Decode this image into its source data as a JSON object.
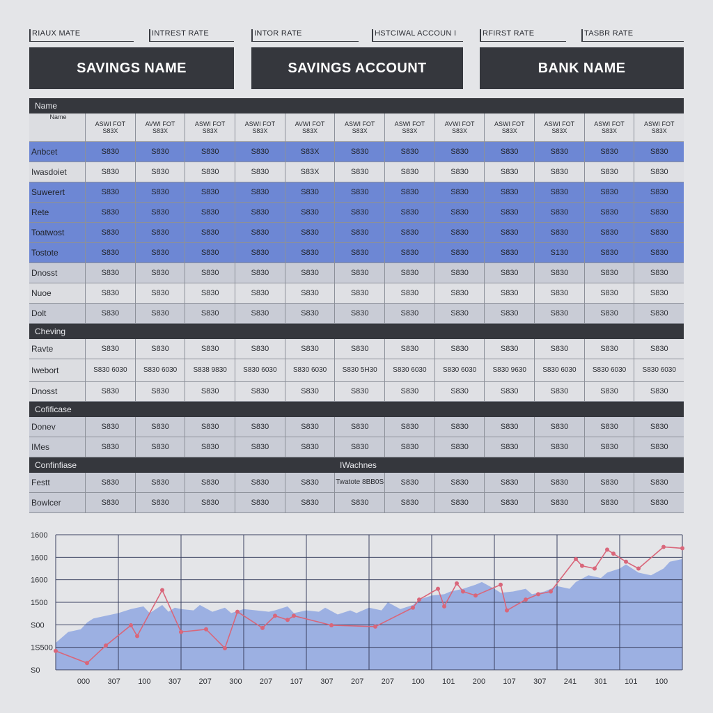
{
  "top_labels": [
    "RIAUX MATE",
    "INTREST RATE",
    "INTOR RATE",
    "HSTCIWAL ACCOUN I",
    "RFIRST RATE",
    "TASBR RATE"
  ],
  "banners": [
    "SAVINGS NAME",
    "SAVINGS ACCOUNT",
    "BANK NAME"
  ],
  "table": {
    "section1_title": "Name",
    "header_name": "Name",
    "column_headers": [
      {
        "l1": "ASWI FOT",
        "l2": "S83X"
      },
      {
        "l1": "AVWI FOT",
        "l2": "S83X"
      },
      {
        "l1": "ASWI FOT",
        "l2": "S83X"
      },
      {
        "l1": "ASWI FOT",
        "l2": "S83X"
      },
      {
        "l1": "AVWI FOT",
        "l2": "S83X"
      },
      {
        "l1": "ASWI FOT",
        "l2": "S83X"
      },
      {
        "l1": "ASWI FOT",
        "l2": "S83X"
      },
      {
        "l1": "AVWI FOT",
        "l2": "S83X"
      },
      {
        "l1": "ASWI FOT",
        "l2": "S83X"
      },
      {
        "l1": "ASWI FOT",
        "l2": "S83X"
      },
      {
        "l1": "ASWI FOT",
        "l2": "S83X"
      },
      {
        "l1": "ASWI FOT",
        "l2": "S83X"
      }
    ],
    "section1_rows": [
      {
        "name": "Anbcet",
        "style": "blue",
        "cells": [
          "S830",
          "S830",
          "S830",
          "S830",
          "S83X",
          "S830",
          "S830",
          "S830",
          "S830",
          "S830",
          "S830",
          "S830"
        ]
      },
      {
        "name": "Iwasdoiet",
        "style": "plain",
        "cells": [
          "S830",
          "S830",
          "S830",
          "S830",
          "S83X",
          "S830",
          "S830",
          "S830",
          "S830",
          "S830",
          "S830",
          "S830"
        ]
      },
      {
        "name": "Suwerert",
        "style": "blue",
        "cells": [
          "S830",
          "S830",
          "S830",
          "S830",
          "S830",
          "S830",
          "S830",
          "S830",
          "S830",
          "S830",
          "S830",
          "S830"
        ]
      },
      {
        "name": "Rete",
        "style": "blue",
        "cells": [
          "S830",
          "S830",
          "S830",
          "S830",
          "S830",
          "S830",
          "S830",
          "S830",
          "S830",
          "S830",
          "S830",
          "S830"
        ]
      },
      {
        "name": "Toatwost",
        "style": "blue",
        "cells": [
          "S830",
          "S830",
          "S830",
          "S830",
          "S830",
          "S830",
          "S830",
          "S830",
          "S830",
          "S830",
          "S830",
          "S830"
        ]
      },
      {
        "name": "Tostote",
        "style": "blue",
        "cells": [
          "S830",
          "S830",
          "S830",
          "S830",
          "S830",
          "S830",
          "S830",
          "S830",
          "S830",
          "S130",
          "S830",
          "S830"
        ]
      },
      {
        "name": "Dnosst",
        "style": "alt",
        "cells": [
          "S830",
          "S830",
          "S830",
          "S830",
          "S830",
          "S830",
          "S830",
          "S830",
          "S830",
          "S830",
          "S830",
          "S830"
        ]
      },
      {
        "name": "Nuoe",
        "style": "plain",
        "cells": [
          "S830",
          "S830",
          "S830",
          "S830",
          "S830",
          "S830",
          "S830",
          "S830",
          "S830",
          "S830",
          "S830",
          "S830"
        ]
      },
      {
        "name": "Dolt",
        "style": "alt",
        "cells": [
          "S830",
          "S830",
          "S830",
          "S830",
          "S830",
          "S830",
          "S830",
          "S830",
          "S830",
          "S830",
          "S830",
          "S830"
        ]
      }
    ],
    "section2_title": "Cheving",
    "section2_rows": [
      {
        "name": "Ravte",
        "style": "plain",
        "stack": false,
        "cells": [
          "S830",
          "S830",
          "S830",
          "S830",
          "S830",
          "S830",
          "S830",
          "S830",
          "S830",
          "S830",
          "S830",
          "S830"
        ]
      },
      {
        "name": "Iwebort",
        "style": "plain",
        "stack": true,
        "cells": [
          "S830 6030",
          "S830 6030",
          "S838 9830",
          "S830 6030",
          "S830 6030",
          "S830 5H30",
          "S830 6030",
          "S830 6030",
          "S830 9630",
          "S830 6030",
          "S830 6030",
          "S830 6030"
        ]
      },
      {
        "name": "Dnosst",
        "style": "plain",
        "stack": false,
        "cells": [
          "S830",
          "S830",
          "S830",
          "S830",
          "S830",
          "S830",
          "S830",
          "S830",
          "S830",
          "S830",
          "S830",
          "S830"
        ]
      }
    ],
    "section3_title": "Cofificase",
    "section3_rows": [
      {
        "name": "Donev",
        "style": "alt",
        "cells": [
          "S830",
          "S830",
          "S830",
          "S830",
          "S830",
          "S830",
          "S830",
          "S830",
          "S830",
          "S830",
          "S830",
          "S830"
        ]
      },
      {
        "name": "IMes",
        "style": "alt",
        "cells": [
          "S830",
          "S830",
          "S830",
          "S830",
          "S830",
          "S830",
          "S830",
          "S830",
          "S830",
          "S830",
          "S830",
          "S830"
        ]
      }
    ],
    "section4_title": "Confinfiase",
    "section4_mid": "IWachnes",
    "section4_rows": [
      {
        "name": "Festt",
        "style": "alt",
        "cells": [
          "S830",
          "S830",
          "S830",
          "S830",
          "S830",
          "Twatote 8BB0S",
          "S830",
          "S830",
          "S830",
          "S830",
          "S830",
          "S830"
        ]
      },
      {
        "name": "Bowlcer",
        "style": "alt",
        "cells": [
          "S830",
          "S830",
          "S830",
          "S830",
          "S830",
          "S830",
          "S830",
          "S830",
          "S830",
          "S830",
          "S830",
          "S830"
        ]
      }
    ]
  },
  "chart_data": {
    "type": "line",
    "y_tick_labels": [
      "1600",
      "1600",
      "1600",
      "1500",
      "S00",
      "1S500",
      "S0"
    ],
    "x_tick_labels": [
      "000",
      "307",
      "100",
      "307",
      "207",
      "300",
      "207",
      "107",
      "307",
      "207",
      "207",
      "100",
      "101",
      "200",
      "107",
      "307",
      "241",
      "301",
      "101",
      "100"
    ],
    "line_color": "#d9667a",
    "area_color": "#8aa2e0",
    "ylim": [
      0,
      100
    ],
    "series": [
      {
        "type": "area",
        "x": [
          0,
          2,
          4,
          5,
          6,
          8,
          10,
          12,
          14,
          15,
          17,
          18,
          19,
          20,
          22,
          23,
          25,
          27,
          28,
          30,
          32,
          34,
          35,
          37,
          38,
          40,
          42,
          43,
          45,
          47,
          48,
          50,
          52,
          53,
          55,
          57,
          58,
          60,
          62,
          63,
          65,
          67,
          68,
          70,
          71,
          73,
          75,
          76,
          78,
          80,
          82,
          83,
          85,
          87,
          88,
          90,
          91,
          93,
          95,
          97,
          98,
          100
        ],
        "values": [
          20,
          28,
          30,
          35,
          38,
          40,
          42,
          45,
          47,
          42,
          48,
          43,
          46,
          45,
          44,
          48,
          43,
          46,
          42,
          45,
          44,
          43,
          44,
          47,
          42,
          44,
          43,
          46,
          41,
          44,
          42,
          46,
          44,
          50,
          45,
          48,
          52,
          55,
          56,
          58,
          60,
          63,
          65,
          60,
          57,
          58,
          60,
          56,
          58,
          62,
          60,
          65,
          70,
          68,
          72,
          75,
          78,
          72,
          70,
          75,
          80,
          82
        ]
      },
      {
        "type": "line",
        "x": [
          0,
          5,
          8,
          12,
          13,
          17,
          20,
          24,
          27,
          29,
          33,
          35,
          37,
          38,
          44,
          51,
          57,
          58,
          61,
          62,
          64,
          65,
          67,
          71,
          72,
          75,
          77,
          79,
          83,
          84,
          86,
          88,
          89,
          91,
          93,
          97,
          100
        ],
        "values": [
          14,
          5,
          18,
          33,
          25,
          59,
          28,
          30,
          16,
          43,
          31,
          40,
          37,
          40,
          33,
          32,
          46,
          52,
          60,
          47,
          64,
          58,
          55,
          63,
          44,
          52,
          56,
          58,
          82,
          77,
          75,
          89,
          86,
          80,
          75,
          91,
          90
        ]
      }
    ]
  }
}
